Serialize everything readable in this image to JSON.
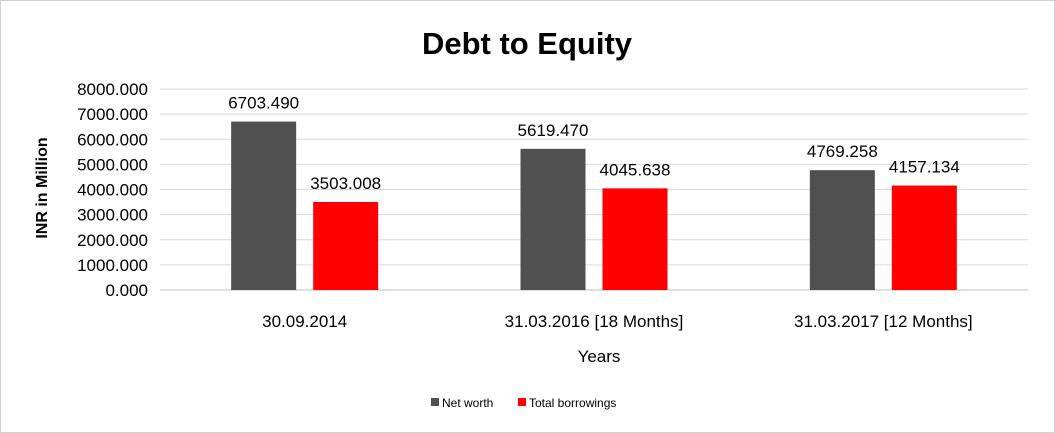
{
  "chart_data": {
    "type": "bar",
    "title": "Debt to Equity",
    "xlabel": "Years",
    "ylabel": "INR in Million",
    "ylim": [
      0,
      8000
    ],
    "yticks": [
      "0.000",
      "1000.000",
      "2000.000",
      "3000.000",
      "4000.000",
      "5000.000",
      "6000.000",
      "7000.000",
      "8000.000"
    ],
    "categories": [
      "30.09.2014",
      "31.03.2016 [18 Months]",
      "31.03.2017 [12 Months]"
    ],
    "series": [
      {
        "name": "Net worth",
        "color": "#505050",
        "values": [
          6703.49,
          5619.47,
          4769.258
        ],
        "labels": [
          "6703.490",
          "5619.470",
          "4769.258"
        ]
      },
      {
        "name": "Total borrowings",
        "color": "#ff0000",
        "values": [
          3503.008,
          4045.638,
          4157.134
        ],
        "labels": [
          "3503.008",
          "4045.638",
          "4157.134"
        ]
      }
    ],
    "grid": "horizontal",
    "legend": "bottom"
  }
}
